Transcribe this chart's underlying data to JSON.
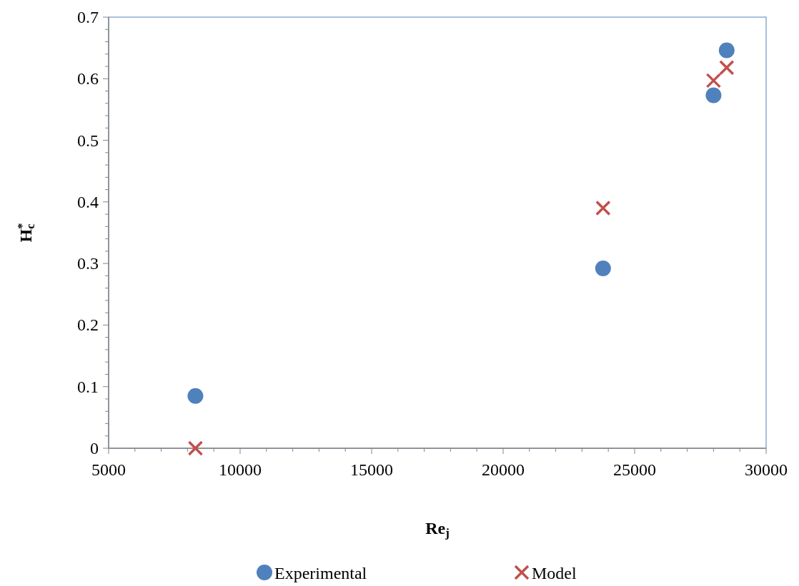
{
  "chart_data": {
    "type": "scatter",
    "xlabel": "Re$_{j}$",
    "ylabel": "H$_{c}$$^{*}$",
    "xlim": [
      5000,
      30000
    ],
    "ylim": [
      0,
      0.7
    ],
    "xticks": [
      5000,
      {
        "value": 6000,
        "label": null
      },
      {
        "value": 7000,
        "label": null
      },
      {
        "value": 8000,
        "label": null
      },
      {
        "value": 9000,
        "label": null
      },
      10000,
      {
        "value": 11000,
        "label": null
      },
      {
        "value": 12000,
        "label": null
      },
      {
        "value": 13000,
        "label": null
      },
      {
        "value": 14000,
        "label": null
      },
      15000,
      {
        "value": 16000,
        "label": null
      },
      {
        "value": 17000,
        "label": null
      },
      {
        "value": 18000,
        "label": null
      },
      {
        "value": 19000,
        "label": null
      },
      20000,
      {
        "value": 21000,
        "label": null
      },
      {
        "value": 22000,
        "label": null
      },
      {
        "value": 23000,
        "label": null
      },
      {
        "value": 24000,
        "label": null
      },
      25000,
      {
        "value": 26000,
        "label": null
      },
      {
        "value": 27000,
        "label": null
      },
      {
        "value": 28000,
        "label": null
      },
      {
        "value": 29000,
        "label": null
      },
      30000
    ],
    "yticks": [
      0,
      {
        "value": 0.02,
        "label": null
      },
      {
        "value": 0.04,
        "label": null
      },
      {
        "value": 0.06,
        "label": null
      },
      {
        "value": 0.08,
        "label": null
      },
      0.1,
      {
        "value": 0.12,
        "label": null
      },
      {
        "value": 0.14,
        "label": null
      },
      {
        "value": 0.16,
        "label": null
      },
      {
        "value": 0.18,
        "label": null
      },
      0.2,
      {
        "value": 0.22,
        "label": null
      },
      {
        "value": 0.24,
        "label": null
      },
      {
        "value": 0.26,
        "label": null
      },
      {
        "value": 0.28,
        "label": null
      },
      0.3,
      {
        "value": 0.32,
        "label": null
      },
      {
        "value": 0.34,
        "label": null
      },
      {
        "value": 0.36,
        "label": null
      },
      {
        "value": 0.38,
        "label": null
      },
      0.4,
      {
        "value": 0.42,
        "label": null
      },
      {
        "value": 0.44,
        "label": null
      },
      {
        "value": 0.46,
        "label": null
      },
      {
        "value": 0.48,
        "label": null
      },
      0.5,
      {
        "value": 0.52,
        "label": null
      },
      {
        "value": 0.54,
        "label": null
      },
      {
        "value": 0.56,
        "label": null
      },
      {
        "value": 0.58,
        "label": null
      },
      0.6,
      {
        "value": 0.62,
        "label": null
      },
      {
        "value": 0.64,
        "label": null
      },
      {
        "value": 0.66,
        "label": null
      },
      {
        "value": 0.68,
        "label": null
      },
      0.7
    ],
    "grid": false,
    "legend": "bottom",
    "series": [
      {
        "name": "Experimental",
        "color": "#4f81bd",
        "marker": "circle",
        "x": [
          8300,
          23800,
          28000,
          28500
        ],
        "values": [
          0.085,
          0.292,
          0.573,
          0.646
        ]
      },
      {
        "name": "Model",
        "color": "#c0504d",
        "marker": "cross",
        "x": [
          8300,
          23800,
          28000,
          28500
        ],
        "values": [
          0,
          0.39,
          0.597,
          0.618
        ]
      }
    ]
  }
}
